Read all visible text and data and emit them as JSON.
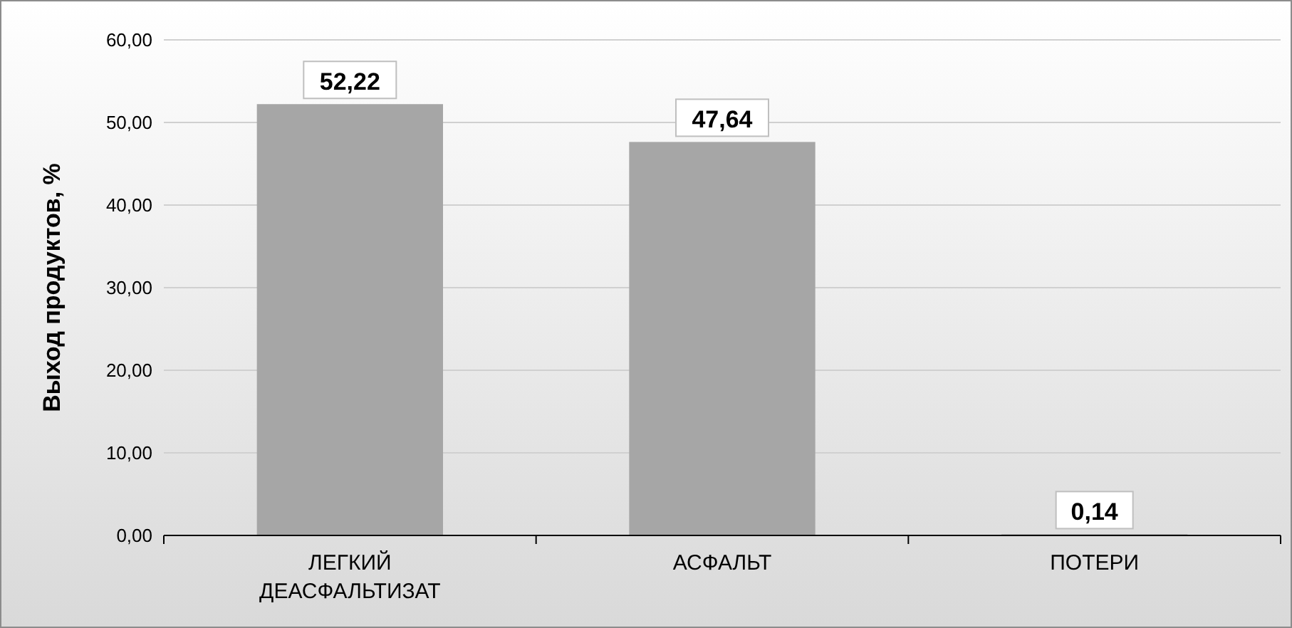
{
  "chart_data": {
    "type": "bar",
    "ylabel": "Выход продуктов, %",
    "categories": [
      "ЛЕГКИЙ ДЕАСФАЛЬТИЗАТ",
      "АСФАЛЬТ",
      "ПОТЕРИ"
    ],
    "values": [
      52.22,
      47.64,
      0.14
    ],
    "color": "#a6a6a6",
    "value_labels": [
      "52,22",
      "47,64",
      "0,14"
    ],
    "ylim": [
      0,
      60
    ],
    "yticks": [
      {
        "value": 0,
        "label": "0,00"
      },
      {
        "value": 10,
        "label": "10,00"
      },
      {
        "value": 20,
        "label": "20,00"
      },
      {
        "value": 30,
        "label": "30,00"
      },
      {
        "value": 40,
        "label": "40,00"
      },
      {
        "value": 50,
        "label": "50,00"
      },
      {
        "value": 60,
        "label": "60,00"
      }
    ],
    "grid": "y"
  }
}
